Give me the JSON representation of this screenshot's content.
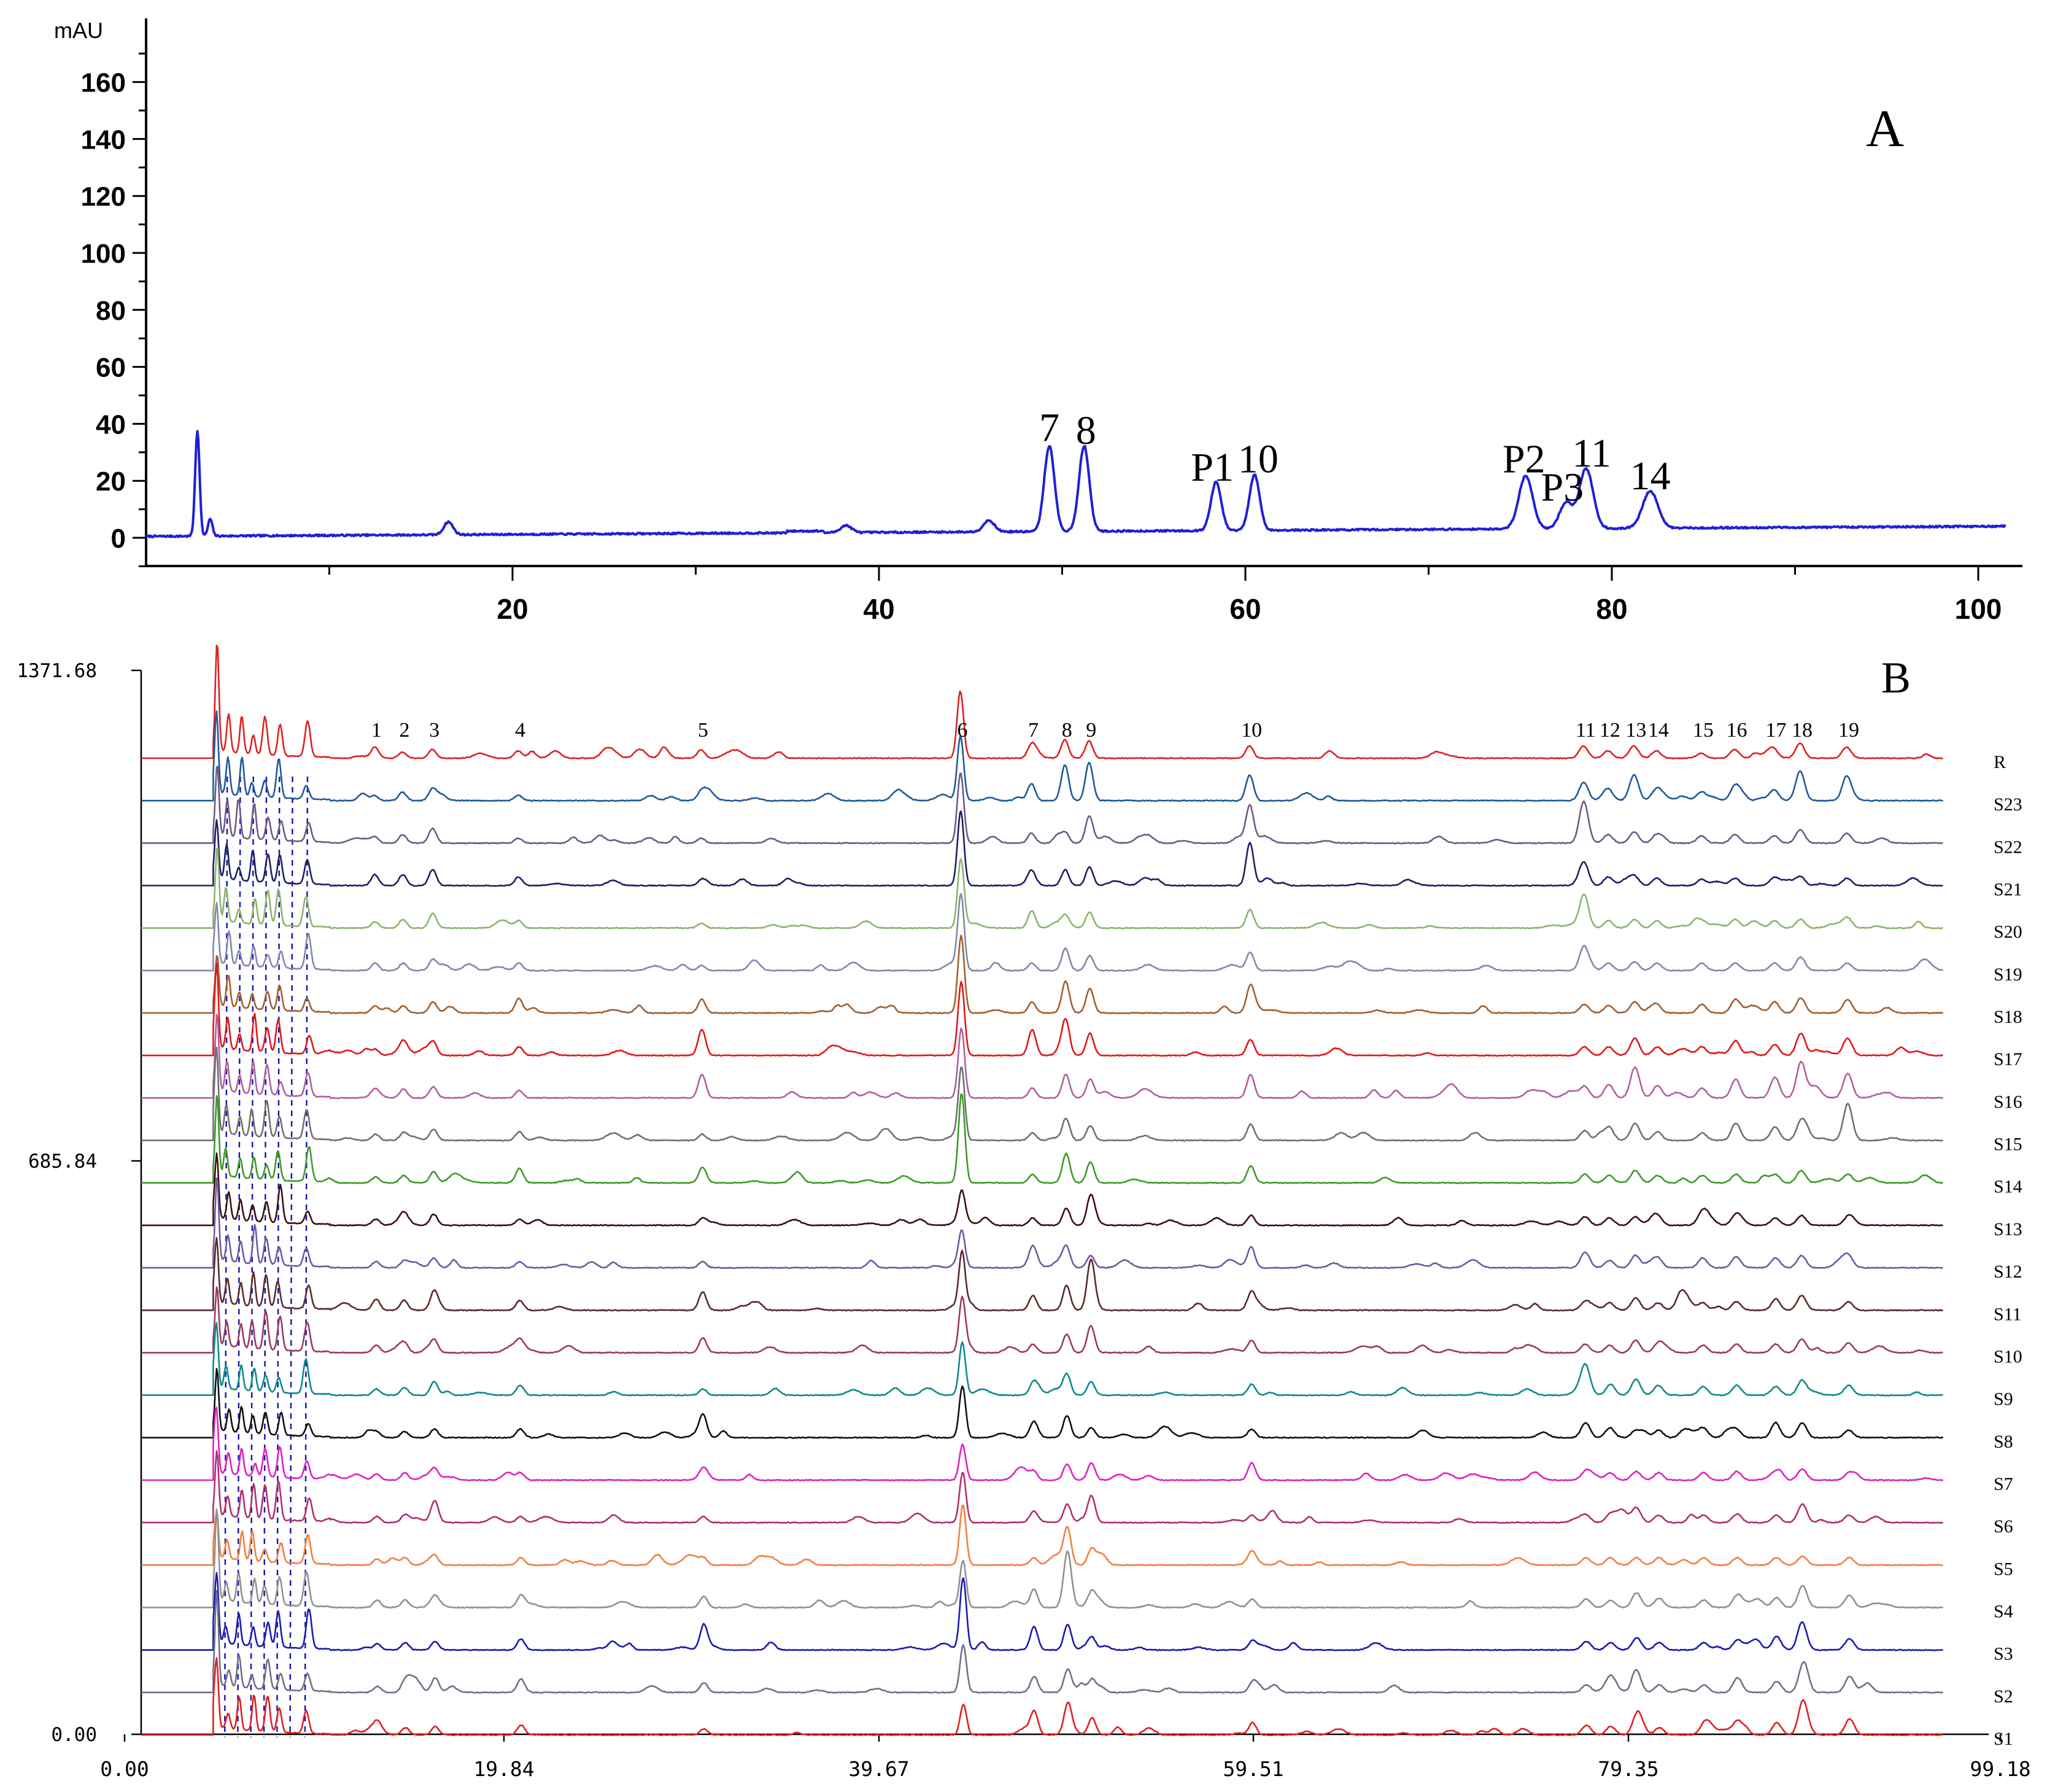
{
  "chart_data": [
    {
      "type": "line",
      "panel_letter": "A",
      "ylabel": "mAU",
      "xlim": [
        0,
        101.5
      ],
      "ylim": [
        -17,
        175
      ],
      "y_ticks": [
        0,
        20,
        40,
        60,
        80,
        100,
        120,
        140,
        160
      ],
      "x_ticks": [
        20,
        40,
        60,
        80,
        100
      ],
      "series_color": "#1f1fd6",
      "baseline": 0.5,
      "peaks": [
        {
          "x": 2.8,
          "h": 37,
          "w": 0.12
        },
        {
          "x": 3.5,
          "h": 6,
          "w": 0.12
        },
        {
          "x": 16.5,
          "h": 4.5,
          "w": 0.25
        },
        {
          "x": 38.2,
          "h": 2.5,
          "w": 0.3
        },
        {
          "x": 46.0,
          "h": 4,
          "w": 0.3
        },
        {
          "x": 49.3,
          "h": 30,
          "w": 0.28
        },
        {
          "x": 51.2,
          "h": 30,
          "w": 0.28
        },
        {
          "x": 58.4,
          "h": 17,
          "w": 0.28
        },
        {
          "x": 60.5,
          "h": 19.5,
          "w": 0.28
        },
        {
          "x": 75.3,
          "h": 18.5,
          "w": 0.38
        },
        {
          "x": 77.5,
          "h": 9,
          "w": 0.35
        },
        {
          "x": 78.6,
          "h": 21,
          "w": 0.38
        },
        {
          "x": 82.1,
          "h": 13,
          "w": 0.42
        }
      ],
      "annotations": [
        {
          "text": "7",
          "x": 49.3,
          "y": 34
        },
        {
          "text": "8",
          "x": 51.3,
          "y": 33
        },
        {
          "text": "P1",
          "x": 58.2,
          "y": 20
        },
        {
          "text": "10",
          "x": 60.7,
          "y": 23
        },
        {
          "text": "P2",
          "x": 75.2,
          "y": 23
        },
        {
          "text": "P3",
          "x": 77.3,
          "y": 13
        },
        {
          "text": "11",
          "x": 78.9,
          "y": 25
        },
        {
          "text": "14",
          "x": 82.1,
          "y": 17
        }
      ]
    },
    {
      "type": "line",
      "panel_letter": "B",
      "xlim": [
        0,
        99.18
      ],
      "ylim": [
        0,
        1371.68
      ],
      "x_ticks": [
        "0.00",
        "19.84",
        "39.67",
        "59.51",
        "79.35",
        "99.18"
      ],
      "y_ticks": [
        "0.00",
        "685.84",
        "1371.68"
      ],
      "peak_labels": [
        {
          "text": "1",
          "x": 13.5
        },
        {
          "text": "2",
          "x": 15.0
        },
        {
          "text": "3",
          "x": 16.6
        },
        {
          "text": "4",
          "x": 21.2
        },
        {
          "text": "5",
          "x": 31.0
        },
        {
          "text": "6",
          "x": 44.9
        },
        {
          "text": "7",
          "x": 48.7
        },
        {
          "text": "8",
          "x": 50.5
        },
        {
          "text": "9",
          "x": 51.8
        },
        {
          "text": "10",
          "x": 60.4
        },
        {
          "text": "11",
          "x": 78.3
        },
        {
          "text": "12",
          "x": 79.6
        },
        {
          "text": "13",
          "x": 81.0
        },
        {
          "text": "14",
          "x": 82.2
        },
        {
          "text": "15",
          "x": 84.6
        },
        {
          "text": "16",
          "x": 86.4
        },
        {
          "text": "17",
          "x": 88.5
        },
        {
          "text": "18",
          "x": 89.9
        },
        {
          "text": "19",
          "x": 92.4
        }
      ],
      "peak_positions": [
        13.5,
        15.0,
        16.6,
        21.2,
        31.0,
        44.9,
        48.7,
        50.5,
        51.8,
        60.4,
        78.3,
        79.6,
        81.0,
        82.2,
        84.6,
        86.4,
        88.5,
        89.9,
        92.4
      ],
      "series": [
        {
          "name": "R",
          "color": "#e02020",
          "scale": [
            15,
            10,
            14,
            12,
            14,
            110,
            16,
            30,
            28,
            20,
            20,
            12,
            20,
            12,
            8,
            14,
            12,
            24,
            18
          ]
        },
        {
          "name": "S23",
          "color": "#1f5a99",
          "scale": [
            8,
            14,
            18,
            9,
            10,
            105,
            28,
            58,
            62,
            42,
            30,
            14,
            42,
            10,
            14,
            22,
            18,
            48,
            38
          ]
        },
        {
          "name": "S22",
          "color": "#6e5a88",
          "scale": [
            10,
            14,
            24,
            8,
            8,
            115,
            16,
            18,
            44,
            60,
            68,
            14,
            18,
            14,
            12,
            14,
            12,
            22,
            16
          ]
        },
        {
          "name": "S21",
          "color": "#1e1e66",
          "scale": [
            18,
            18,
            26,
            14,
            8,
            122,
            18,
            26,
            30,
            70,
            38,
            14,
            14,
            12,
            10,
            12,
            12,
            14,
            12
          ]
        },
        {
          "name": "S20",
          "color": "#8cb56a",
          "scale": [
            10,
            14,
            24,
            12,
            8,
            112,
            28,
            16,
            26,
            30,
            54,
            12,
            14,
            12,
            12,
            14,
            12,
            14,
            12
          ]
        },
        {
          "name": "S19",
          "color": "#8585ad",
          "scale": [
            12,
            12,
            18,
            12,
            8,
            122,
            12,
            36,
            24,
            30,
            40,
            12,
            14,
            12,
            12,
            12,
            12,
            22,
            12
          ]
        },
        {
          "name": "S18",
          "color": "#a06030",
          "scale": [
            12,
            12,
            18,
            24,
            22,
            126,
            18,
            52,
            40,
            36,
            14,
            12,
            18,
            12,
            14,
            22,
            18,
            24,
            22
          ]
        },
        {
          "name": "S17",
          "color": "#e01818",
          "scale": [
            10,
            14,
            22,
            14,
            42,
            120,
            42,
            56,
            36,
            26,
            14,
            14,
            28,
            14,
            14,
            24,
            18,
            36,
            28
          ]
        },
        {
          "name": "S16",
          "color": "#b0609e",
          "scale": [
            10,
            14,
            18,
            12,
            38,
            114,
            16,
            38,
            30,
            38,
            18,
            22,
            50,
            20,
            16,
            30,
            34,
            58,
            40
          ]
        },
        {
          "name": "S15",
          "color": "#707070",
          "scale": [
            10,
            12,
            18,
            14,
            10,
            118,
            12,
            36,
            24,
            26,
            16,
            22,
            28,
            14,
            12,
            28,
            22,
            32,
            60
          ]
        },
        {
          "name": "S14",
          "color": "#3e9a28",
          "scale": [
            10,
            12,
            18,
            24,
            22,
            146,
            14,
            48,
            34,
            28,
            14,
            12,
            20,
            12,
            12,
            14,
            14,
            20,
            14
          ]
        },
        {
          "name": "S13",
          "color": "#3b1010",
          "scale": [
            10,
            10,
            18,
            10,
            10,
            46,
            12,
            28,
            44,
            16,
            14,
            12,
            14,
            12,
            12,
            12,
            12,
            16,
            12
          ]
        },
        {
          "name": "S12",
          "color": "#6e5aa0",
          "scale": [
            10,
            10,
            16,
            10,
            10,
            60,
            24,
            32,
            20,
            34,
            26,
            12,
            20,
            14,
            16,
            18,
            16,
            20,
            14
          ]
        },
        {
          "name": "S11",
          "color": "#5a2a2a",
          "scale": [
            18,
            16,
            30,
            16,
            30,
            96,
            24,
            40,
            72,
            22,
            14,
            12,
            20,
            12,
            12,
            14,
            14,
            24,
            14
          ]
        },
        {
          "name": "S10",
          "color": "#9a3a60",
          "scale": [
            12,
            12,
            22,
            14,
            24,
            90,
            14,
            30,
            44,
            20,
            14,
            12,
            20,
            12,
            12,
            14,
            14,
            22,
            16
          ]
        },
        {
          "name": "S9",
          "color": "#0e8a8a",
          "scale": [
            10,
            12,
            22,
            16,
            10,
            86,
            14,
            34,
            22,
            18,
            34,
            12,
            26,
            16,
            14,
            16,
            14,
            24,
            16
          ]
        },
        {
          "name": "S8",
          "color": "#101010",
          "scale": [
            10,
            10,
            14,
            14,
            36,
            84,
            22,
            36,
            16,
            14,
            24,
            16,
            12,
            12,
            12,
            12,
            18,
            24,
            12
          ]
        },
        {
          "name": "S7",
          "color": "#e020c0",
          "scale": [
            10,
            12,
            18,
            12,
            10,
            58,
            14,
            26,
            28,
            28,
            14,
            12,
            14,
            12,
            12,
            14,
            12,
            18,
            12
          ]
        },
        {
          "name": "S6",
          "color": "#b03070",
          "scale": [
            10,
            12,
            36,
            10,
            10,
            82,
            14,
            30,
            44,
            12,
            12,
            12,
            24,
            12,
            12,
            14,
            12,
            30,
            12
          ]
        },
        {
          "name": "S5",
          "color": "#f08040",
          "scale": [
            10,
            12,
            14,
            12,
            10,
            98,
            12,
            60,
            26,
            16,
            12,
            12,
            12,
            12,
            12,
            12,
            12,
            14,
            12
          ]
        },
        {
          "name": "S4",
          "color": "#909090",
          "scale": [
            12,
            12,
            12,
            18,
            18,
            76,
            30,
            80,
            18,
            14,
            14,
            12,
            24,
            12,
            12,
            18,
            16,
            36,
            20
          ]
        },
        {
          "name": "S3",
          "color": "#1a1ab0",
          "scale": [
            10,
            12,
            14,
            18,
            40,
            118,
            38,
            42,
            20,
            14,
            14,
            12,
            20,
            12,
            12,
            16,
            22,
            34,
            18
          ]
        },
        {
          "name": "S2",
          "color": "#707088",
          "scale": [
            10,
            12,
            24,
            22,
            16,
            78,
            26,
            36,
            22,
            16,
            12,
            16,
            30,
            12,
            12,
            24,
            18,
            40,
            26
          ]
        },
        {
          "name": "S1",
          "color": "#e02020",
          "scale": [
            10,
            12,
            14,
            16,
            10,
            50,
            36,
            46,
            28,
            20,
            16,
            14,
            32,
            12,
            14,
            22,
            20,
            48,
            26
          ]
        }
      ]
    }
  ]
}
